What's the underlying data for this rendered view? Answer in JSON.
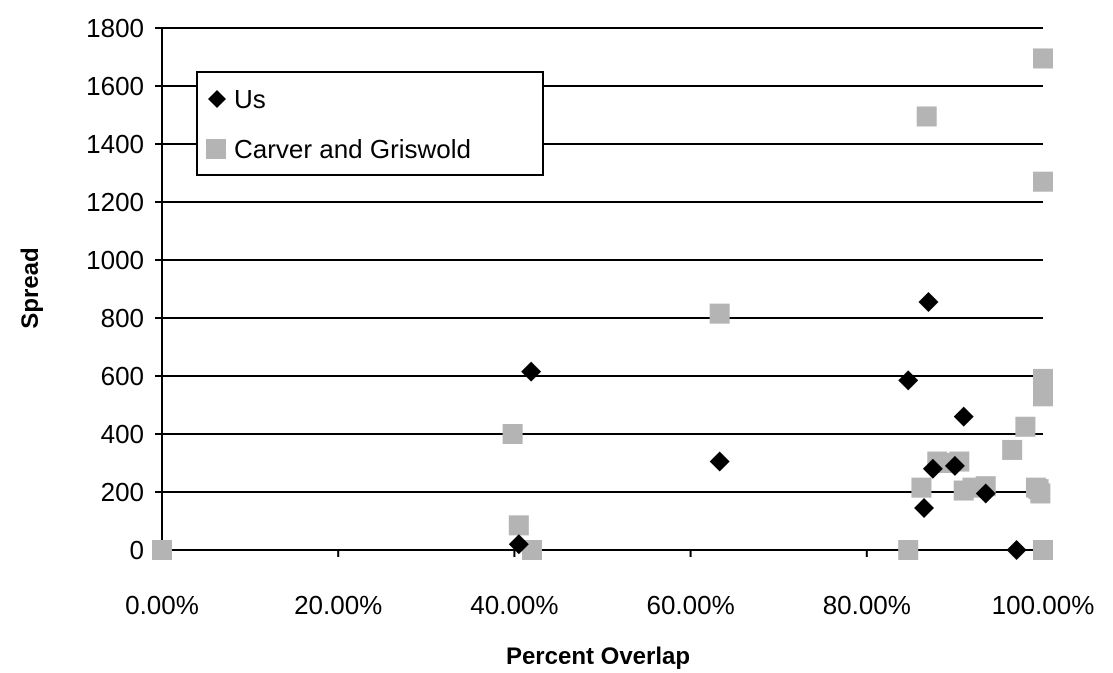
{
  "chart_data": {
    "type": "scatter",
    "xlabel": "Percent Overlap",
    "ylabel": "Spread",
    "xlim": [
      0,
      100
    ],
    "ylim": [
      0,
      1800
    ],
    "x_ticks": [
      "0.00%",
      "20.00%",
      "40.00%",
      "60.00%",
      "80.00%",
      "100.00%"
    ],
    "x_tick_values": [
      0,
      20,
      40,
      60,
      80,
      100
    ],
    "y_ticks": [
      "0",
      "200",
      "400",
      "600",
      "800",
      "1000",
      "1200",
      "1400",
      "1600",
      "1800"
    ],
    "y_tick_values": [
      0,
      200,
      400,
      600,
      800,
      1000,
      1200,
      1400,
      1600,
      1800
    ],
    "grid": "horizontal",
    "legend_position": "top-left",
    "series": [
      {
        "name": "Us",
        "marker": "diamond",
        "color": "#000000",
        "x": [
          40.5,
          41.9,
          63.3,
          84.7,
          86.5,
          87.0,
          87.5,
          90.0,
          91.0,
          93.5,
          97.0
        ],
        "y": [
          20,
          615,
          305,
          585,
          145,
          855,
          280,
          290,
          460,
          195,
          0
        ]
      },
      {
        "name": "Carver and Griswold",
        "marker": "square",
        "color": "#b4b4b4",
        "x": [
          0,
          39.8,
          40.5,
          42.0,
          63.3,
          84.7,
          86.2,
          86.8,
          88.0,
          89.0,
          90.5,
          91.0,
          92.0,
          93.5,
          96.5,
          98.0,
          99.2,
          99.5,
          99.7,
          100.0,
          100.0,
          100.0,
          100.0,
          100.0
        ],
        "y": [
          0,
          400,
          85,
          0,
          815,
          0,
          215,
          1495,
          305,
          300,
          305,
          205,
          215,
          220,
          345,
          425,
          215,
          210,
          195,
          0,
          530,
          590,
          1270,
          1695
        ]
      }
    ]
  }
}
